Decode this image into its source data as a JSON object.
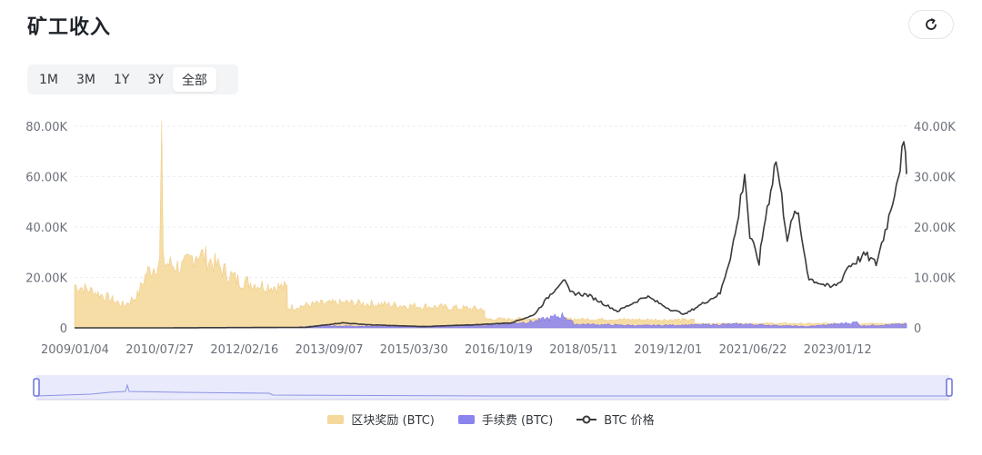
{
  "page": {
    "title": "矿工收入"
  },
  "toolbar": {
    "refresh_icon": "refresh-icon"
  },
  "range_selector": {
    "options": [
      "1M",
      "3M",
      "1Y",
      "3Y",
      "全部"
    ],
    "selected": "全部"
  },
  "colors": {
    "block_reward": "#f5d89b",
    "fees": "#8b84ee",
    "price": "#3a3a3a",
    "navigator_bg": "#e9eafb",
    "navigator_handle": "#6b70e0"
  },
  "chart_data": {
    "type": "area",
    "x_ticks": [
      "2009/01/04",
      "2010/07/27",
      "2012/02/16",
      "2013/09/07",
      "2015/03/30",
      "2016/10/19",
      "2018/05/11",
      "2019/12/01",
      "2021/06/22",
      "2023/01/12"
    ],
    "x_range": [
      "2009/01/04",
      "2024/04/01"
    ],
    "left_axis": {
      "ticks": [
        "0",
        "20.00K",
        "40.00K",
        "60.00K",
        "80.00K"
      ],
      "range": [
        0,
        80000
      ]
    },
    "right_axis": {
      "ticks": [
        "0",
        "10.00K",
        "20.00K",
        "30.00K",
        "40.00K"
      ],
      "range": [
        0,
        40000
      ]
    },
    "grid": true,
    "legend_position": "bottom",
    "series": [
      {
        "name": "区块奖励 (BTC)",
        "axis": "left",
        "kind": "area",
        "points": [
          [
            "2009/01/04",
            17000
          ],
          [
            "2009/06/01",
            14000
          ],
          [
            "2009/12/01",
            9000
          ],
          [
            "2010/03/01",
            13000
          ],
          [
            "2010/05/01",
            22000
          ],
          [
            "2010/07/27",
            26000
          ],
          [
            "2010/08/10",
            78000
          ],
          [
            "2010/08/20",
            26000
          ],
          [
            "2011/01/01",
            24000
          ],
          [
            "2011/04/01",
            30000
          ],
          [
            "2011/06/01",
            28000
          ],
          [
            "2011/09/01",
            24000
          ],
          [
            "2012/01/01",
            19000
          ],
          [
            "2012/06/01",
            17000
          ],
          [
            "2012/11/27",
            16000
          ],
          [
            "2012/11/28",
            8000
          ],
          [
            "2013/06/01",
            9500
          ],
          [
            "2014/01/01",
            10000
          ],
          [
            "2015/01/01",
            9000
          ],
          [
            "2016/01/01",
            8000
          ],
          [
            "2016/07/09",
            7500
          ],
          [
            "2016/07/10",
            3500
          ],
          [
            "2017/06/01",
            3700
          ],
          [
            "2018/06/01",
            3500
          ],
          [
            "2019/06/01",
            3300
          ],
          [
            "2020/05/11",
            3200
          ],
          [
            "2020/05/12",
            1700
          ],
          [
            "2021/06/01",
            1800
          ],
          [
            "2022/06/01",
            1700
          ],
          [
            "2023/06/01",
            1700
          ],
          [
            "2024/04/01",
            1700
          ]
        ]
      },
      {
        "name": "手续费 (BTC)",
        "axis": "left",
        "kind": "area",
        "points": [
          [
            "2009/01/04",
            0
          ],
          [
            "2012/11/27",
            0
          ],
          [
            "2013/06/01",
            800
          ],
          [
            "2015/01/01",
            600
          ],
          [
            "2016/07/01",
            1000
          ],
          [
            "2017/06/01",
            2500
          ],
          [
            "2017/12/20",
            5000
          ],
          [
            "2018/03/01",
            1500
          ],
          [
            "2019/06/01",
            900
          ],
          [
            "2020/06/01",
            1200
          ],
          [
            "2021/04/01",
            1500
          ],
          [
            "2022/06/01",
            500
          ],
          [
            "2023/05/08",
            2200
          ],
          [
            "2023/06/01",
            800
          ],
          [
            "2024/04/01",
            1500
          ]
        ]
      },
      {
        "name": "BTC 价格",
        "axis": "right",
        "kind": "line",
        "points": [
          [
            "2009/01/04",
            0
          ],
          [
            "2010/07/27",
            0
          ],
          [
            "2013/04/01",
            100
          ],
          [
            "2013/12/01",
            1000
          ],
          [
            "2014/06/01",
            600
          ],
          [
            "2015/06/01",
            250
          ],
          [
            "2016/06/01",
            650
          ],
          [
            "2017/01/01",
            1000
          ],
          [
            "2017/06/01",
            2500
          ],
          [
            "2017/12/17",
            9700
          ],
          [
            "2018/02/01",
            7000
          ],
          [
            "2018/06/01",
            6500
          ],
          [
            "2018/12/15",
            3300
          ],
          [
            "2019/06/26",
            6300
          ],
          [
            "2019/12/01",
            3700
          ],
          [
            "2020/03/12",
            2700
          ],
          [
            "2020/06/01",
            4200
          ],
          [
            "2020/11/01",
            6800
          ],
          [
            "2021/01/08",
            14200
          ],
          [
            "2021/02/20",
            20000
          ],
          [
            "2021/04/14",
            31000
          ],
          [
            "2021/05/19",
            18000
          ],
          [
            "2021/07/20",
            13000
          ],
          [
            "2021/08/20",
            20000
          ],
          [
            "2021/11/10",
            33500
          ],
          [
            "2022/01/24",
            18000
          ],
          [
            "2022/03/28",
            23500
          ],
          [
            "2022/06/18",
            9800
          ],
          [
            "2022/11/09",
            8000
          ],
          [
            "2023/01/12",
            9000
          ],
          [
            "2023/03/01",
            12000
          ],
          [
            "2023/07/01",
            14500
          ],
          [
            "2023/09/11",
            12700
          ],
          [
            "2023/12/05",
            22000
          ],
          [
            "2024/03/14",
            36000
          ],
          [
            "2024/03/25",
            33000
          ],
          [
            "2024/04/01",
            30500
          ]
        ]
      }
    ]
  }
}
